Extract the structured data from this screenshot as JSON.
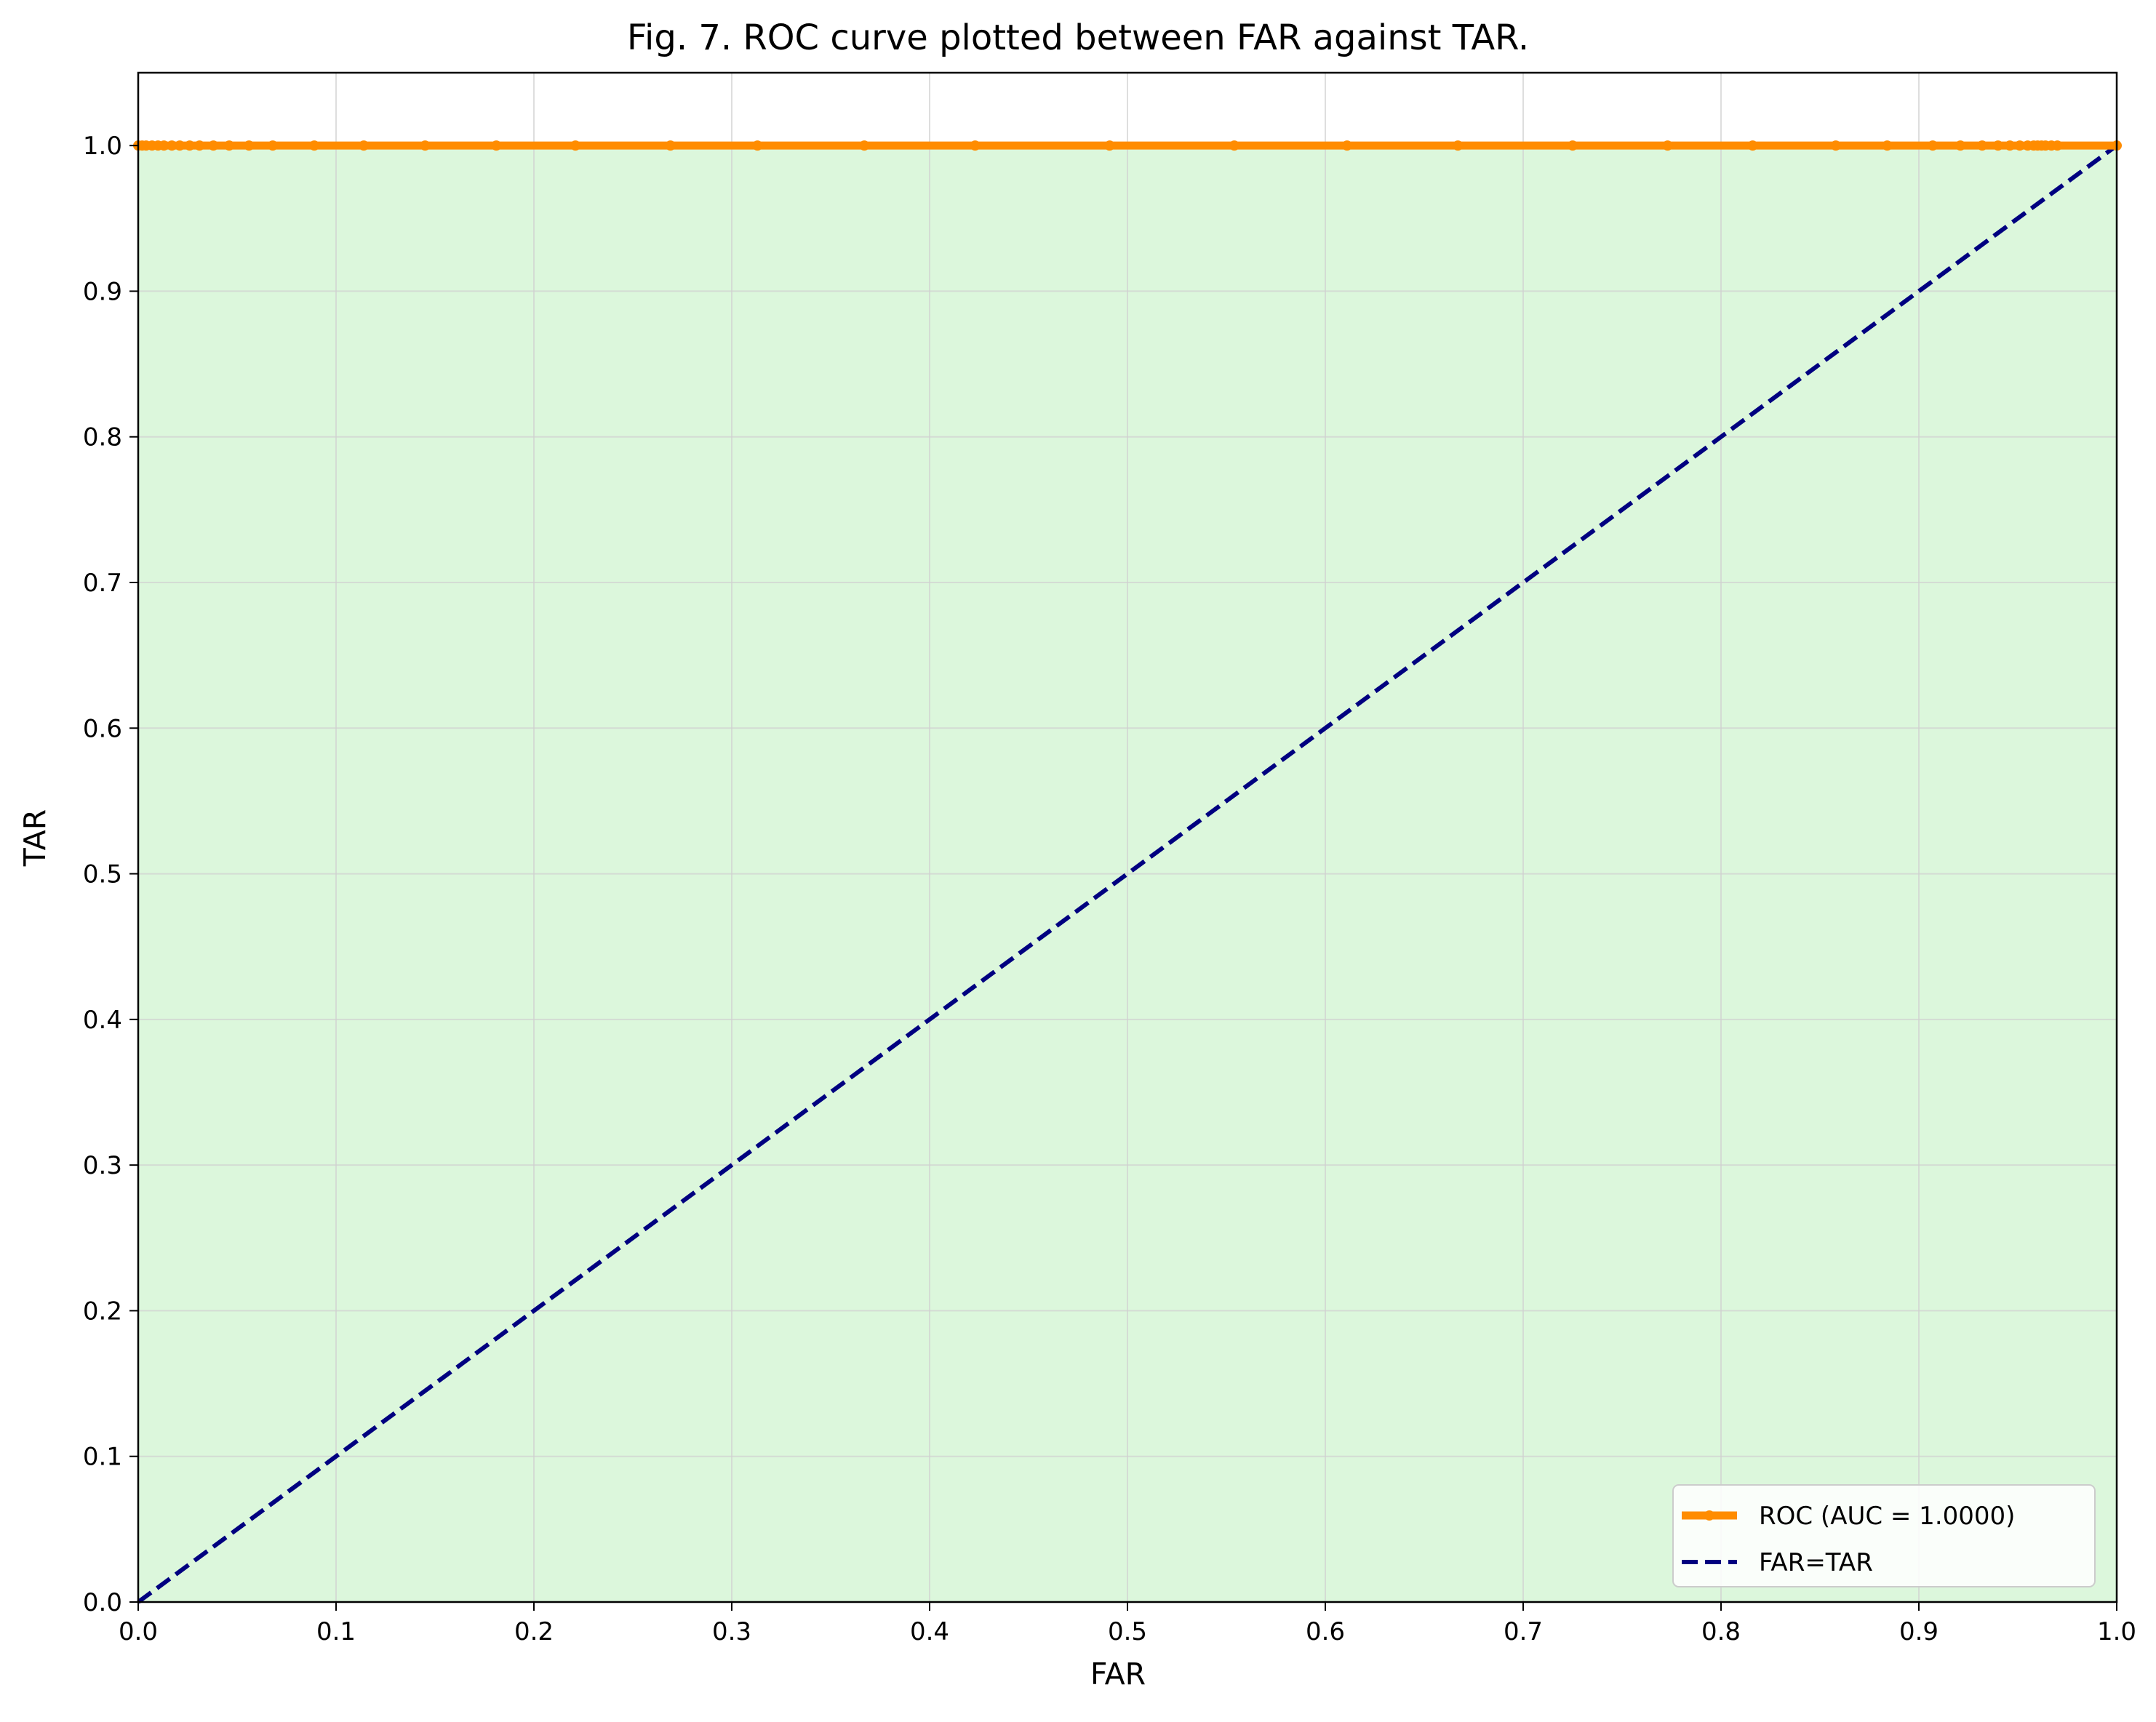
{
  "chart_data": {
    "type": "line",
    "title": "Fig. 7. ROC curve plotted between FAR against TAR.",
    "xlabel": "FAR",
    "ylabel": "TAR",
    "xlim": [
      0.0,
      1.0
    ],
    "ylim": [
      0.0,
      1.05
    ],
    "xticks": [
      "0.0",
      "0.1",
      "0.2",
      "0.3",
      "0.4",
      "0.5",
      "0.6",
      "0.7",
      "0.8",
      "0.9",
      "1.0"
    ],
    "yticks": [
      "0.0",
      "0.1",
      "0.2",
      "0.3",
      "0.4",
      "0.5",
      "0.6",
      "0.7",
      "0.8",
      "0.9",
      "1.0"
    ],
    "grid": true,
    "legend_position": "bottom-right",
    "fill_under_roc": true,
    "series": [
      {
        "name": "ROC (AUC = 1.0000)",
        "style": "solid-with-point-markers",
        "color": "#ff8c00",
        "x": [
          0.0,
          0.002,
          0.004,
          0.007,
          0.01,
          0.013,
          0.017,
          0.021,
          0.026,
          0.031,
          0.038,
          0.046,
          0.056,
          0.068,
          0.089,
          0.114,
          0.145,
          0.181,
          0.221,
          0.269,
          0.313,
          0.367,
          0.423,
          0.491,
          0.554,
          0.611,
          0.667,
          0.725,
          0.773,
          0.816,
          0.858,
          0.884,
          0.907,
          0.921,
          0.932,
          0.94,
          0.946,
          0.951,
          0.955,
          0.958,
          0.96,
          0.962,
          0.964,
          0.967,
          0.97,
          1.0
        ],
        "y": [
          1,
          1,
          1,
          1,
          1,
          1,
          1,
          1,
          1,
          1,
          1,
          1,
          1,
          1,
          1,
          1,
          1,
          1,
          1,
          1,
          1,
          1,
          1,
          1,
          1,
          1,
          1,
          1,
          1,
          1,
          1,
          1,
          1,
          1,
          1,
          1,
          1,
          1,
          1,
          1,
          1,
          1,
          1,
          1,
          1,
          1
        ]
      },
      {
        "name": "FAR=TAR",
        "style": "dashed",
        "color": "#000080",
        "x": [
          0.0,
          1.0
        ],
        "y": [
          0.0,
          1.0
        ]
      }
    ],
    "colors": {
      "fill": "#dcf7dc",
      "grid": "#d0d0d0",
      "axes": "#000000"
    }
  }
}
